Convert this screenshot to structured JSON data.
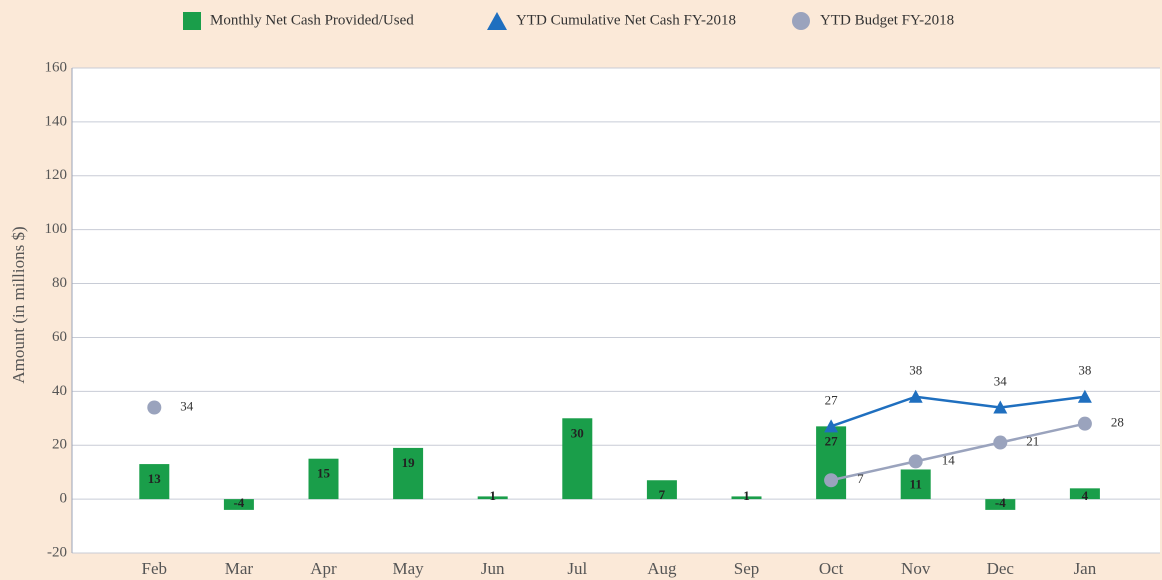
{
  "chart_data": {
    "type": "bar",
    "y_label": "Amount (in millions $)",
    "categories": [
      "Feb",
      "Mar",
      "Apr",
      "May",
      "Jun",
      "Jul",
      "Aug",
      "Sep",
      "Oct",
      "Nov",
      "Dec",
      "Jan"
    ],
    "series": [
      {
        "name": "Monthly Net Cash Provided/Used",
        "type": "bar",
        "marker": "square",
        "color": "#1a9e4a",
        "values": [
          13,
          -4,
          15,
          19,
          1,
          30,
          7,
          1,
          27,
          11,
          -4,
          4
        ]
      },
      {
        "name": "YTD Cumulative Net Cash FY-2018",
        "type": "line",
        "marker": "triangle",
        "color": "#1f6fbf",
        "values": [
          null,
          null,
          null,
          null,
          null,
          null,
          null,
          null,
          27,
          38,
          34,
          38
        ]
      },
      {
        "name": "YTD Budget FY-2018",
        "type": "line",
        "marker": "circle",
        "color": "#9aa3bd",
        "values": [
          34,
          null,
          null,
          null,
          null,
          null,
          null,
          null,
          7,
          14,
          21,
          28
        ]
      }
    ],
    "ylim": [
      -20,
      160
    ],
    "yticks": [
      -20,
      0,
      20,
      40,
      60,
      80,
      100,
      120,
      140,
      160
    ],
    "grid": true
  }
}
